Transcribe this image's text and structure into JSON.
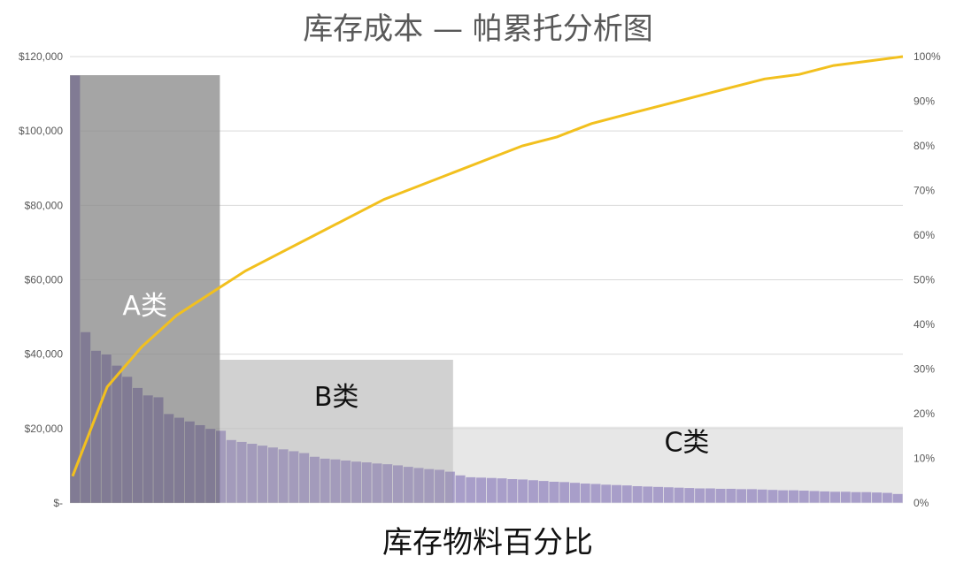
{
  "chart_data": {
    "type": "bar",
    "title": "库存成本 — 帕累托分析图",
    "xlabel": "库存物料百分比",
    "ylabel": "",
    "ylim": [
      0,
      120000
    ],
    "y2lim": [
      0,
      100
    ],
    "y_ticks": [
      "$-",
      "$20,000",
      "$40,000",
      "$60,000",
      "$80,000",
      "$100,000",
      "$120,000"
    ],
    "y_tick_values": [
      0,
      20000,
      40000,
      60000,
      80000,
      100000,
      120000
    ],
    "y2_ticks": [
      "0%",
      "10%",
      "20%",
      "30%",
      "40%",
      "50%",
      "60%",
      "70%",
      "80%",
      "90%",
      "100%"
    ],
    "y2_tick_values": [
      0,
      10,
      20,
      30,
      40,
      50,
      60,
      70,
      80,
      90,
      100
    ],
    "grid": true,
    "bar_color": "#5b3fb0",
    "line_color": "#f2c01e",
    "bar_values": [
      115000,
      46000,
      41000,
      40000,
      37000,
      34000,
      31000,
      29000,
      28500,
      24000,
      23000,
      22000,
      21000,
      20000,
      19500,
      17000,
      16500,
      16000,
      15500,
      15000,
      14500,
      14000,
      13500,
      12500,
      12000,
      11800,
      11500,
      11200,
      11000,
      10700,
      10500,
      10200,
      9800,
      9500,
      9200,
      9000,
      8500,
      7500,
      7000,
      6900,
      6800,
      6700,
      6500,
      6400,
      6200,
      6000,
      5800,
      5700,
      5500,
      5300,
      5200,
      5000,
      4900,
      4800,
      4600,
      4500,
      4400,
      4300,
      4200,
      4100,
      4000,
      4000,
      3900,
      3900,
      3800,
      3800,
      3700,
      3600,
      3500,
      3500,
      3400,
      3300,
      3200,
      3100,
      3100,
      3000,
      3000,
      2900,
      2800,
      2500
    ],
    "cumulative_pct": [
      6,
      26,
      35,
      42,
      47,
      52,
      56,
      60,
      64,
      68,
      71,
      74,
      77,
      80,
      82,
      85,
      87,
      89,
      91,
      93,
      95,
      96,
      98,
      99,
      100
    ],
    "zones": [
      {
        "label": "A类",
        "x_end_pct": 18,
        "height": 115000,
        "fill": "#8c8c8c",
        "opacity": 0.78,
        "text_color": "#ffffff"
      },
      {
        "label": "B类",
        "x_end_pct": 46,
        "height": 38500,
        "fill": "#bfbfbf",
        "opacity": 0.72,
        "text_color": "#111111"
      },
      {
        "label": "C类",
        "x_end_pct": 100,
        "height": 20500,
        "fill": "#d9d9d9",
        "opacity": 0.62,
        "text_color": "#111111"
      }
    ]
  }
}
